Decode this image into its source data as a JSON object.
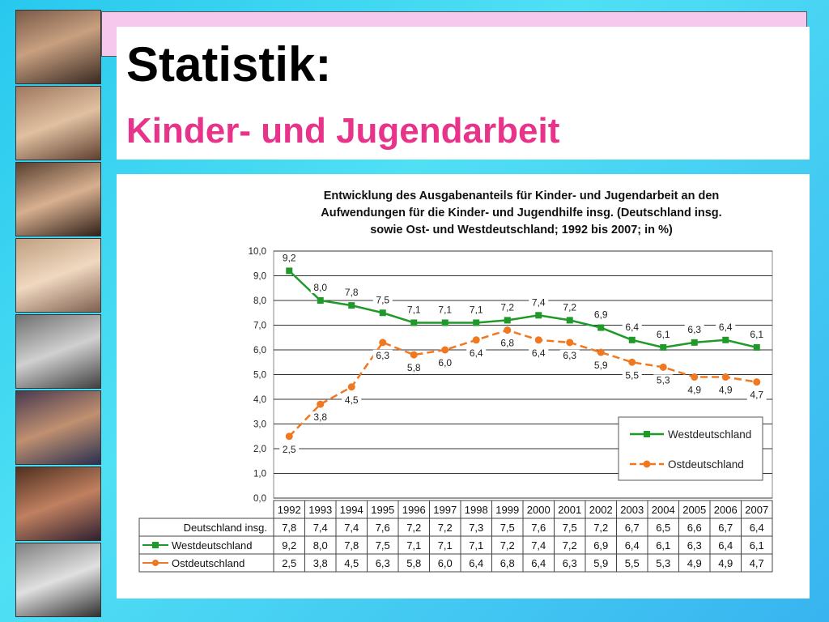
{
  "slide": {
    "title": "Statistik:",
    "subtitle": "Kinder- und Jugendarbeit"
  },
  "colors": {
    "west": "#1f9a2a",
    "ost": "#f07820",
    "subtitle": "#e8338a"
  },
  "chart_data": {
    "type": "line",
    "title_lines": [
      "Entwicklung des Ausgabenanteils für Kinder- und Jugendarbeit an den",
      "Aufwendungen für die Kinder- und Jugendhilfe insg. (Deutschland insg.",
      "sowie Ost- und Westdeutschland; 1992 bis 2007; in %)"
    ],
    "x": [
      "1992",
      "1993",
      "1994",
      "1995",
      "1996",
      "1997",
      "1998",
      "1999",
      "2000",
      "2001",
      "2002",
      "2003",
      "2004",
      "2005",
      "2006",
      "2007"
    ],
    "ylim": [
      0,
      10
    ],
    "yticks": [
      "0,0",
      "1,0",
      "2,0",
      "3,0",
      "4,0",
      "5,0",
      "6,0",
      "7,0",
      "8,0",
      "9,0",
      "10,0"
    ],
    "grid": true,
    "legend_position": "bottom-right",
    "series": [
      {
        "name": "Westdeutschland",
        "values": [
          9.2,
          8.0,
          7.8,
          7.5,
          7.1,
          7.1,
          7.1,
          7.2,
          7.4,
          7.2,
          6.9,
          6.4,
          6.1,
          6.3,
          6.4,
          6.1
        ],
        "labels": [
          "9,2",
          "8,0",
          "7,8",
          "7,5",
          "7,1",
          "7,1",
          "7,1",
          "7,2",
          "7,4",
          "7,2",
          "6,9",
          "6,4",
          "6,1",
          "6,3",
          "6,4",
          "6,1"
        ]
      },
      {
        "name": "Ostdeutschland",
        "values": [
          2.5,
          3.8,
          4.5,
          6.3,
          5.8,
          6.0,
          6.4,
          6.8,
          6.4,
          6.3,
          5.9,
          5.5,
          5.3,
          4.9,
          4.9,
          4.7
        ],
        "labels": [
          "2,5",
          "3,8",
          "4,5",
          "6,3",
          "5,8",
          "6,0",
          "6,4",
          "6,8",
          "6,4",
          "6,3",
          "5,9",
          "5,5",
          "5,3",
          "4,9",
          "4,9",
          "4,7"
        ]
      }
    ],
    "table": {
      "rows": [
        {
          "name": "Deutschland insg.",
          "values": [
            "7,8",
            "7,4",
            "7,4",
            "7,6",
            "7,2",
            "7,2",
            "7,3",
            "7,5",
            "7,6",
            "7,5",
            "7,2",
            "6,7",
            "6,5",
            "6,6",
            "6,7",
            "6,4"
          ]
        },
        {
          "name": "Westdeutschland",
          "values": [
            "9,2",
            "8,0",
            "7,8",
            "7,5",
            "7,1",
            "7,1",
            "7,1",
            "7,2",
            "7,4",
            "7,2",
            "6,9",
            "6,4",
            "6,1",
            "6,3",
            "6,4",
            "6,1"
          ]
        },
        {
          "name": "Ostdeutschland",
          "values": [
            "2,5",
            "3,8",
            "4,5",
            "6,3",
            "5,8",
            "6,0",
            "6,4",
            "6,8",
            "6,4",
            "6,3",
            "5,9",
            "5,5",
            "5,3",
            "4,9",
            "4,9",
            "4,7"
          ]
        }
      ]
    }
  }
}
